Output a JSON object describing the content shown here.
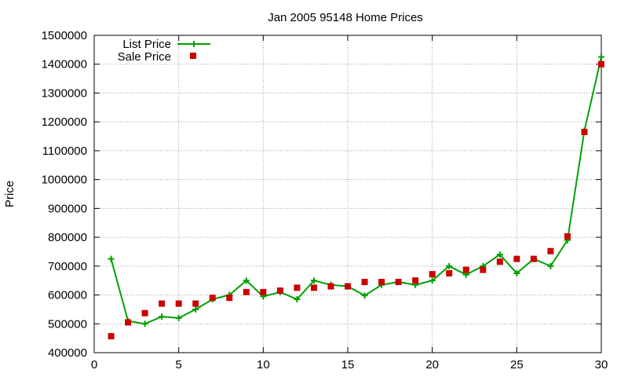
{
  "chart_data": {
    "type": "line",
    "title": "Jan 2005 95148 Home Prices",
    "xlabel": "",
    "ylabel": "Price",
    "xlim": [
      0,
      30
    ],
    "ylim": [
      400000,
      1500000
    ],
    "x_ticks": [
      "0",
      "5",
      "10",
      "15",
      "20",
      "25",
      "30"
    ],
    "y_ticks": [
      "400000",
      "500000",
      "600000",
      "700000",
      "800000",
      "900000",
      "1000000",
      "1100000",
      "1200000",
      "1300000",
      "1400000",
      "1500000"
    ],
    "grid": true,
    "legend_position": "top-left",
    "series": [
      {
        "name": "List Price",
        "style": "line-with-plus-markers",
        "color": "#00a000",
        "x": [
          1,
          2,
          3,
          4,
          5,
          6,
          7,
          8,
          9,
          10,
          11,
          12,
          13,
          14,
          15,
          16,
          17,
          18,
          19,
          20,
          21,
          22,
          23,
          24,
          25,
          26,
          27,
          28,
          29,
          30
        ],
        "values": [
          725000,
          510000,
          500000,
          525000,
          520000,
          550000,
          585000,
          600000,
          650000,
          595000,
          610000,
          585000,
          650000,
          635000,
          630000,
          598000,
          635000,
          645000,
          635000,
          650000,
          700000,
          670000,
          700000,
          740000,
          675000,
          725000,
          700000,
          790000,
          1170000,
          1425000
        ]
      },
      {
        "name": "Sale Price",
        "style": "square-markers",
        "color": "#cc0000",
        "x": [
          1,
          2,
          3,
          4,
          5,
          6,
          7,
          8,
          9,
          10,
          11,
          12,
          13,
          14,
          15,
          16,
          17,
          18,
          19,
          20,
          21,
          22,
          23,
          24,
          25,
          26,
          27,
          28,
          29,
          30
        ],
        "values": [
          457000,
          505000,
          537000,
          570000,
          570000,
          570000,
          590000,
          590000,
          610000,
          610000,
          615000,
          625000,
          625000,
          630000,
          630000,
          645000,
          645000,
          645000,
          650000,
          672000,
          675000,
          687000,
          687000,
          715000,
          725000,
          725000,
          752000,
          803000,
          1165000,
          1400000
        ]
      }
    ]
  }
}
